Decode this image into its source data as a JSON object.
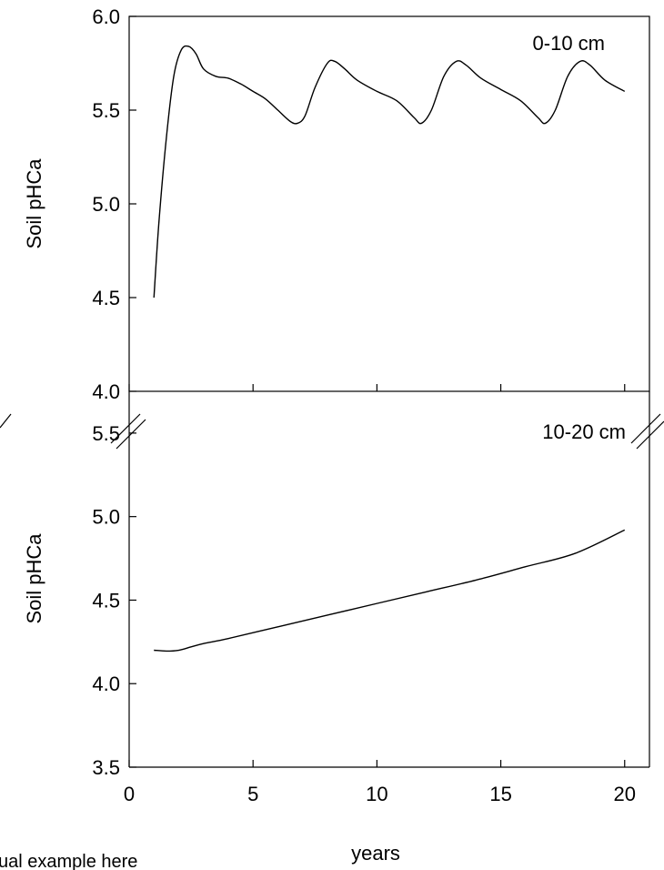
{
  "chart_data": [
    {
      "type": "line",
      "panel": "top",
      "label": "0-10 cm",
      "ylabel": "Soil pHCa",
      "xlim": [
        0,
        21
      ],
      "ylim": [
        4.0,
        6.0
      ],
      "yticks": [
        "6.0",
        "5.5",
        "5.0",
        "4.5",
        "4.0"
      ],
      "ytick_values": [
        6.0,
        5.5,
        5.0,
        4.5,
        4.0
      ],
      "grid": false,
      "series": [
        {
          "x": [
            1.0,
            1.2,
            1.5,
            1.8,
            2.1,
            2.4,
            2.7,
            3.0,
            3.5,
            4.0,
            4.5,
            5.0,
            5.5,
            6.0,
            6.5,
            6.8,
            7.1,
            7.5,
            8.0,
            8.3,
            8.7,
            9.2,
            10.0,
            10.8,
            11.5,
            11.8,
            12.2,
            12.7,
            13.2,
            13.6,
            14.2,
            15.0,
            15.8,
            16.5,
            16.8,
            17.2,
            17.7,
            18.2,
            18.6,
            19.2,
            20.0
          ],
          "y": [
            4.5,
            4.9,
            5.35,
            5.68,
            5.82,
            5.84,
            5.8,
            5.72,
            5.68,
            5.67,
            5.64,
            5.6,
            5.56,
            5.5,
            5.44,
            5.43,
            5.47,
            5.62,
            5.75,
            5.76,
            5.72,
            5.66,
            5.6,
            5.55,
            5.46,
            5.43,
            5.5,
            5.68,
            5.76,
            5.74,
            5.67,
            5.61,
            5.55,
            5.46,
            5.43,
            5.5,
            5.68,
            5.76,
            5.74,
            5.66,
            5.6
          ]
        }
      ]
    },
    {
      "type": "line",
      "panel": "bottom",
      "label": "10-20 cm",
      "ylabel": "Soil pHCa",
      "xlabel": "years",
      "xlim": [
        0,
        21
      ],
      "ylim": [
        3.5,
        5.75
      ],
      "axis_break": true,
      "yticks": [
        "5.5",
        "5.0",
        "4.5",
        "4.0",
        "3.5"
      ],
      "ytick_values": [
        5.5,
        5.0,
        4.5,
        4.0,
        3.5
      ],
      "xticks": [
        "0",
        "5",
        "10",
        "15",
        "20"
      ],
      "xtick_values": [
        0,
        5,
        10,
        15,
        20
      ],
      "grid": false,
      "series": [
        {
          "x": [
            1.0,
            1.5,
            2.0,
            2.5,
            3.0,
            4.0,
            6.0,
            8.0,
            10.0,
            12.0,
            14.0,
            16.0,
            18.0,
            20.0
          ],
          "y": [
            4.2,
            4.195,
            4.2,
            4.22,
            4.24,
            4.27,
            4.34,
            4.41,
            4.48,
            4.55,
            4.62,
            4.7,
            4.78,
            4.92
          ]
        }
      ]
    }
  ],
  "footnote": "ual example here"
}
